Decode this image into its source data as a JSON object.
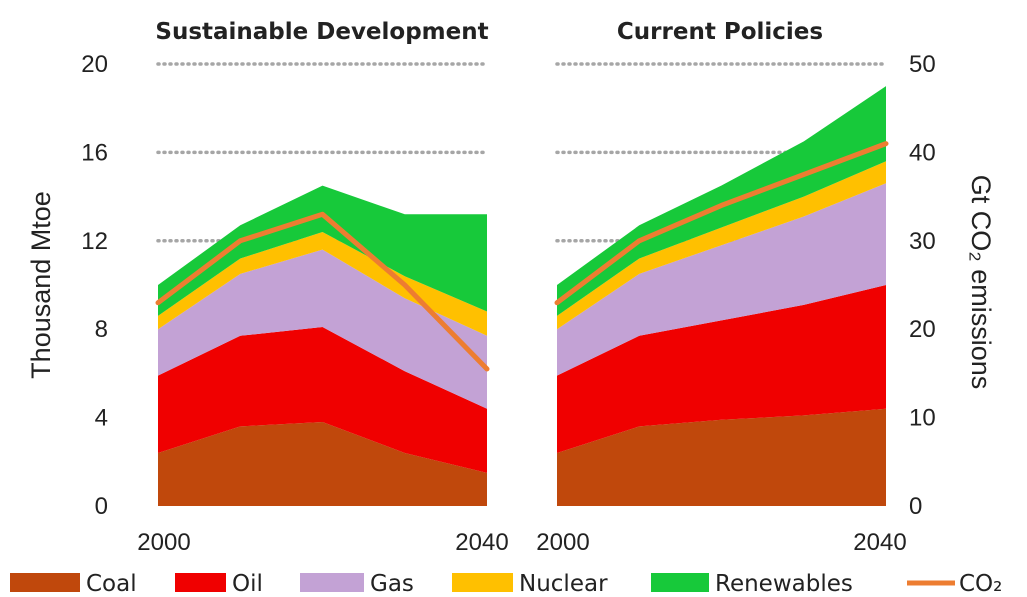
{
  "chart_data": {
    "type": "area",
    "x_ticks": [
      "2000",
      "2040"
    ],
    "y_left": {
      "label": "Thousand Mtoe",
      "ticks": [
        "0",
        "4",
        "8",
        "12",
        "16",
        "20"
      ],
      "ylim": [
        0,
        20
      ]
    },
    "y_right": {
      "label": "Gt CO₂ emissions",
      "ticks": [
        "0",
        "10",
        "20",
        "30",
        "40",
        "50"
      ],
      "ylim": [
        0,
        50
      ]
    },
    "legend": [
      {
        "name": "Coal",
        "color": "#c0480c",
        "kind": "area"
      },
      {
        "name": "Oil",
        "color": "#f00000",
        "kind": "area"
      },
      {
        "name": "Gas",
        "color": "#c3a2d5",
        "kind": "area"
      },
      {
        "name": "Nuclear",
        "color": "#ffc000",
        "kind": "area"
      },
      {
        "name": "Renewables",
        "color": "#17c93a",
        "kind": "area"
      },
      {
        "name": "CO₂",
        "color": "#ed7d31",
        "kind": "line"
      }
    ],
    "panels": [
      {
        "title": "Sustainable Development",
        "x": [
          2000,
          2010,
          2020,
          2030,
          2040
        ],
        "series": {
          "Coal": [
            2.4,
            3.6,
            3.8,
            2.4,
            1.5
          ],
          "Oil": [
            3.5,
            4.1,
            4.3,
            3.7,
            2.9
          ],
          "Gas": [
            2.1,
            2.8,
            3.5,
            3.3,
            3.3
          ],
          "Nuclear": [
            0.6,
            0.7,
            0.8,
            1.0,
            1.1
          ],
          "Renewables": [
            1.4,
            1.5,
            2.1,
            2.8,
            4.4
          ]
        },
        "co2": [
          23,
          30,
          33,
          25,
          15.5
        ]
      },
      {
        "title": "Current Policies",
        "x": [
          2000,
          2010,
          2020,
          2030,
          2040
        ],
        "series": {
          "Coal": [
            2.4,
            3.6,
            3.9,
            4.1,
            4.4
          ],
          "Oil": [
            3.5,
            4.1,
            4.5,
            5.0,
            5.6
          ],
          "Gas": [
            2.1,
            2.8,
            3.4,
            4.0,
            4.6
          ],
          "Nuclear": [
            0.6,
            0.7,
            0.8,
            0.9,
            1.0
          ],
          "Renewables": [
            1.4,
            1.5,
            1.9,
            2.5,
            3.4
          ]
        },
        "co2": [
          23,
          30,
          34,
          37.5,
          41
        ]
      }
    ]
  }
}
